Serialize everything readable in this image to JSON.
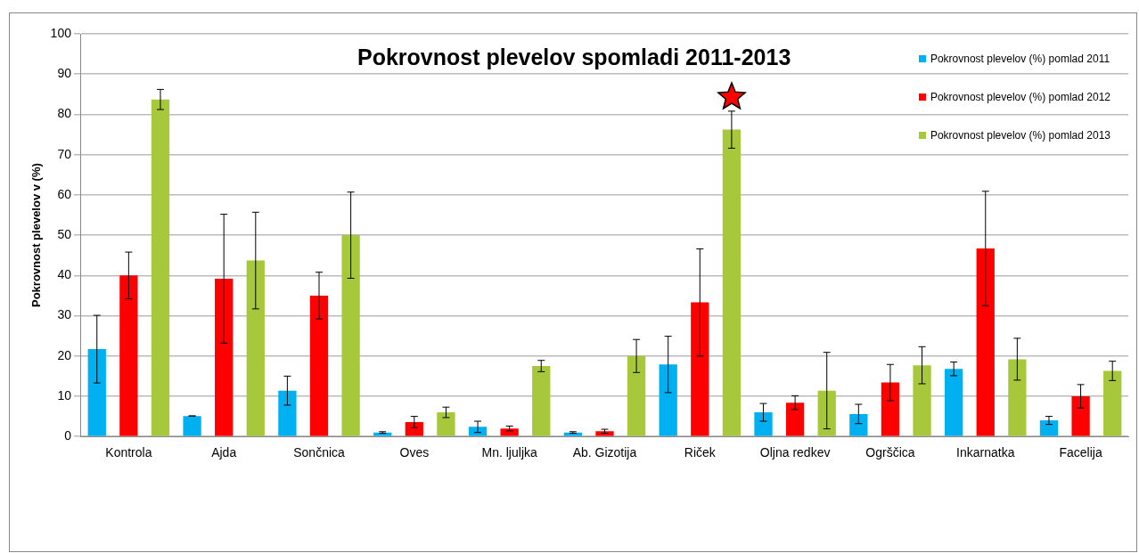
{
  "chart_data": {
    "type": "bar",
    "title": "Pokrovnost plevelov spomladi 2011-2013",
    "ylabel": "Pokrovnost plevelov v (%)",
    "categories": [
      "Kontrola",
      "Ajda",
      "Sončnica",
      "Oves",
      "Mn. ljuljka",
      "Ab. Gizotija",
      "Riček",
      "Oljna redkev",
      "Ogrščica",
      "Inkarnatka",
      "Facelija"
    ],
    "series": [
      {
        "name": "Pokrovnost plevelov (%) pomlad 2011",
        "color": "#00b0f0",
        "values": [
          21.7,
          5.1,
          11.4,
          1,
          2.4,
          1,
          17.9,
          6,
          5.6,
          16.8,
          4
        ],
        "errors": [
          8.4,
          0,
          3.6,
          0.2,
          1.4,
          0.2,
          7,
          2.2,
          2.4,
          1.7,
          1
        ]
      },
      {
        "name": "Pokrovnost plevelov (%) pomlad 2012",
        "color": "#ff0000",
        "values": [
          40,
          39.2,
          35,
          3.6,
          2,
          1.3,
          33.3,
          8.4,
          13.4,
          46.7,
          10
        ],
        "errors": [
          5.8,
          16,
          5.8,
          1.4,
          0.6,
          0.5,
          13.3,
          1.7,
          4.5,
          14.2,
          2.9
        ]
      },
      {
        "name": "Pokrovnost plevelov (%) pomlad 2013",
        "color": "#a8c83c",
        "values": [
          83.7,
          43.7,
          50,
          6,
          17.5,
          20,
          76.2,
          11.4,
          17.7,
          19.2,
          16.3
        ],
        "errors": [
          2.5,
          12,
          10.7,
          1.3,
          1.4,
          4.1,
          4.6,
          9.5,
          4.6,
          5.2,
          2.4
        ]
      }
    ],
    "ylim": [
      0,
      100
    ],
    "yticks": [
      0,
      10,
      20,
      30,
      40,
      50,
      60,
      70,
      80,
      90,
      100
    ],
    "grid": "y",
    "legend": "top right"
  }
}
